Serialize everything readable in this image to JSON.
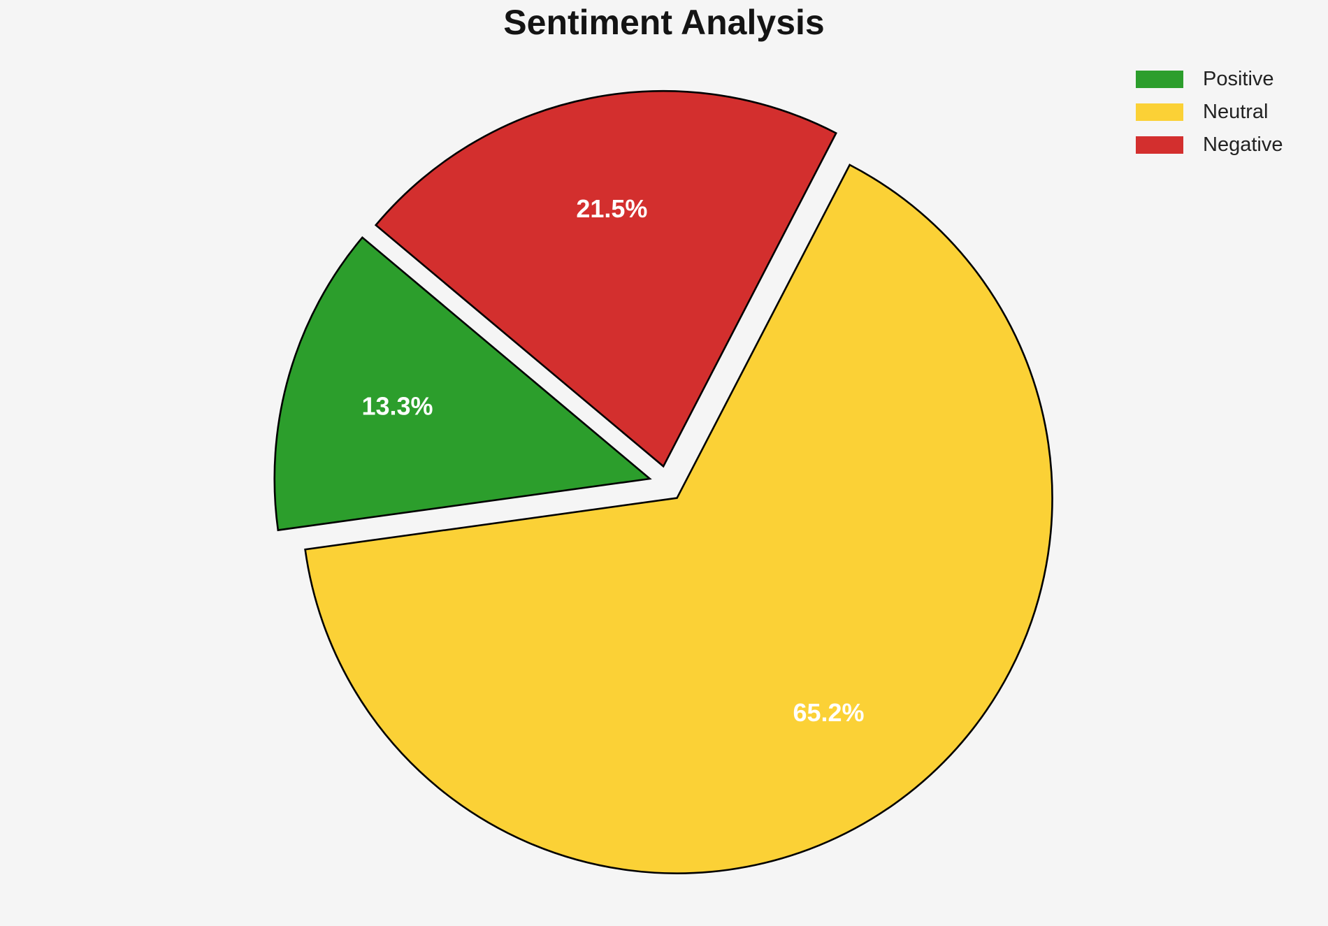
{
  "page": {
    "background_color": "#f5f5f5"
  },
  "chart_data": {
    "type": "pie",
    "title": "Sentiment Analysis",
    "slices": [
      {
        "label": "Positive",
        "value": 13.3,
        "pct_label": "13.3%",
        "color": "#2c9e2c"
      },
      {
        "label": "Neutral",
        "value": 65.2,
        "pct_label": "65.2%",
        "color": "#fbd136"
      },
      {
        "label": "Negative",
        "value": 21.5,
        "pct_label": "21.5%",
        "color": "#d32f2e"
      }
    ],
    "legend": {
      "position": "upper right",
      "entries": [
        "Positive",
        "Neutral",
        "Negative"
      ],
      "frame": false
    },
    "startangle": 140,
    "counterclockwise": true,
    "explode": 0.047,
    "pctdistance": 0.7,
    "edge_color": "#000000",
    "pct_label_color": "#ffffff",
    "title_color": "#141414"
  }
}
